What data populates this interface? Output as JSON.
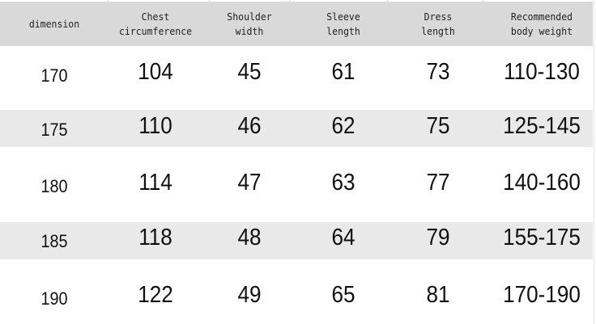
{
  "headers": [
    "dimension",
    "Chest\ncircumference",
    "Shoulder\nwidth",
    "Sleeve\nlength",
    "Dress\nlength",
    "Recommended\nbody weight"
  ],
  "rows": [
    [
      "170",
      "104",
      "45",
      "61",
      "73",
      "110-130"
    ],
    [
      "175",
      "110",
      "46",
      "62",
      "75",
      "125-145"
    ],
    [
      "180",
      "114",
      "47",
      "63",
      "77",
      "140-160"
    ],
    [
      "185",
      "118",
      "48",
      "64",
      "79",
      "155-175"
    ],
    [
      "190",
      "122",
      "49",
      "65",
      "81",
      "170-190"
    ]
  ],
  "colors": {
    "header_bg": "#d9d9d9",
    "band_bg": "#e9e9e9"
  }
}
